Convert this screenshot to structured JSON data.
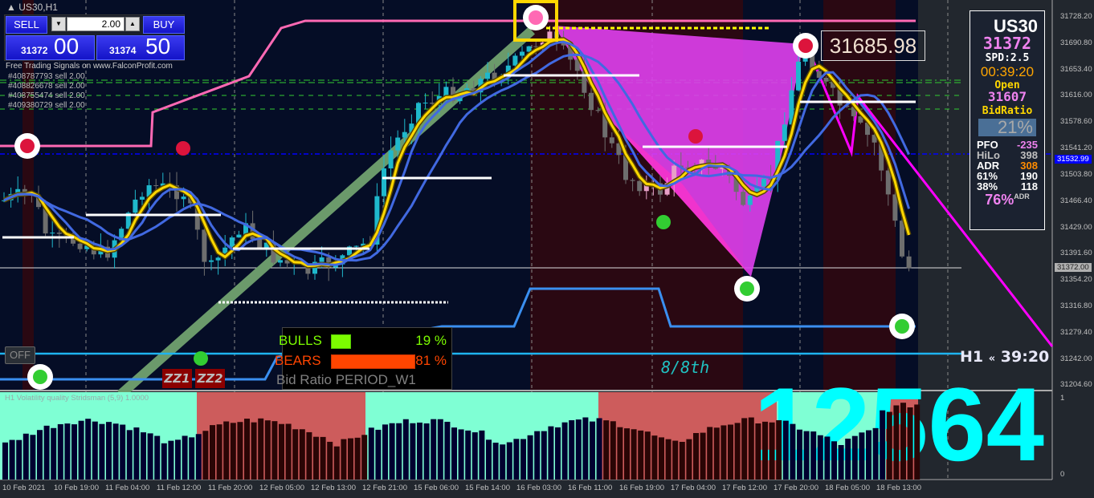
{
  "window": {
    "symbol_label": "US30,H1"
  },
  "trade_panel": {
    "sell_label": "SELL",
    "buy_label": "BUY",
    "quantity": "2.00",
    "bid_main": "31372",
    "bid_pips": "00",
    "ask_main": "31374",
    "ask_pips": "50"
  },
  "signals_text": "Free Trading Signals on www.FalconProfit.com",
  "orders": [
    "#408787793 sell 2.00",
    "#408826678 sell 2.00",
    "#408755474 sell 2.00",
    "#409380729 sell 2.00"
  ],
  "info_panel": {
    "symbol": "US30",
    "price": "31372",
    "spread": "SPD:2.5",
    "timer": "00:39:20",
    "open_label": "Open",
    "open_value": "31607",
    "bidratio_label": "BidRatio",
    "bidratio_value": "21%",
    "rows": [
      {
        "label": "PFO",
        "value": "-235",
        "color": "#ee82ee"
      },
      {
        "label": "HiLo",
        "value": "398",
        "color": "#c0c0c0"
      },
      {
        "label": "ADR",
        "value": "308",
        "color": "#ff8c00"
      },
      {
        "label": "61%",
        "value": "190",
        "color": "#ffffff"
      },
      {
        "label": "38%",
        "value": "118",
        "color": "#ffffff"
      }
    ],
    "adr_pct": "76%",
    "adr_suffix": "ADR"
  },
  "price_box": "31685.98",
  "bulls_bears": {
    "bulls_label": "BULLS",
    "bulls_pct": "19 %",
    "bulls_value": 19,
    "bears_label": "BEARS",
    "bears_pct": "81 %",
    "bears_value": 81,
    "period": "Bid Ratio PERIOD_W1"
  },
  "off_button": "OFF",
  "zz1": "ZZ1",
  "zz2": "ZZ2",
  "murrey_label": "8/8th",
  "timeframe_timer": {
    "tf": "H1",
    "glyph": "«",
    "time": "39:20"
  },
  "indicator": {
    "label": "H1 Volatility quality Stridsman (5,9) 1.0000",
    "big_number": "12564",
    "scale_max": "1",
    "scale_min": "0"
  },
  "price_axis": [
    "31728.20",
    "31690.80",
    "31653.40",
    "31616.00",
    "31578.60",
    "31541.20",
    "31503.80",
    "31466.40",
    "31429.00",
    "31391.60",
    "31354.20",
    "31316.80",
    "31279.40",
    "31242.00",
    "31204.60"
  ],
  "current_price_tag": "31372.00",
  "line_price_tag": "31532.99",
  "time_axis": [
    "10 Feb 2021",
    "10 Feb 19:00",
    "11 Feb 04:00",
    "11 Feb 12:00",
    "11 Feb 20:00",
    "12 Feb 05:00",
    "12 Feb 13:00",
    "12 Feb 21:00",
    "15 Feb 06:00",
    "15 Feb 14:00",
    "16 Feb 03:00",
    "16 Feb 11:00",
    "16 Feb 19:00",
    "17 Feb 04:00",
    "17 Feb 12:00",
    "17 Feb 20:00",
    "18 Feb 05:00",
    "18 Feb 13:00"
  ],
  "colors": {
    "chart_bg": "#050d26",
    "bear_zone": "#2a0812",
    "bull_color": "#1fb8cc",
    "bear_color": "#e8a0c8",
    "ma_fast": "#ffd700",
    "ma_slow": "#4169e1",
    "pattern": "#ff00ff",
    "level_pink": "#ff69b4"
  }
}
